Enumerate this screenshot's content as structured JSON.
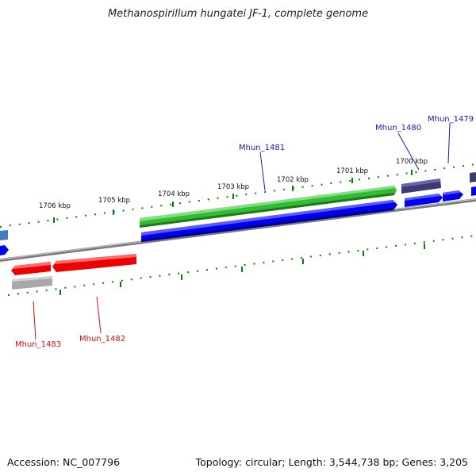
{
  "title": "Methanospirillum hungatei JF-1, complete genome",
  "footer": {
    "accession": "Accession: NC_007796",
    "summary": "Topology: circular; Length: 3,544,738 bp; Genes: 3,205"
  },
  "ruler_labels": [
    "1706 kbp",
    "1705 kbp",
    "1704 kbp",
    "1703 kbp",
    "1702 kbp",
    "1701 kbp",
    "1700 kbp"
  ],
  "gene_labels": [
    {
      "text": "Mhun_1481",
      "color": "#1a1aa6"
    },
    {
      "text": "Mhun_1480",
      "color": "#1a1aa6"
    },
    {
      "text": "Mhun_1479",
      "color": "#1a1aa6"
    },
    {
      "text": "Mhun_1483",
      "color": "#cc1111"
    },
    {
      "text": "Mhun_1482",
      "color": "#cc1111"
    }
  ],
  "colors": {
    "cds_forward": "#0000ee",
    "cds_reverse": "#ee0000",
    "gene_green": "#33bb33",
    "gene_purple": "#3e3a78",
    "gene_steel": "#3f7fbf",
    "gene_gray": "#a8a8a8",
    "backbone": "#8a8a8a",
    "ticks": "#117711"
  }
}
